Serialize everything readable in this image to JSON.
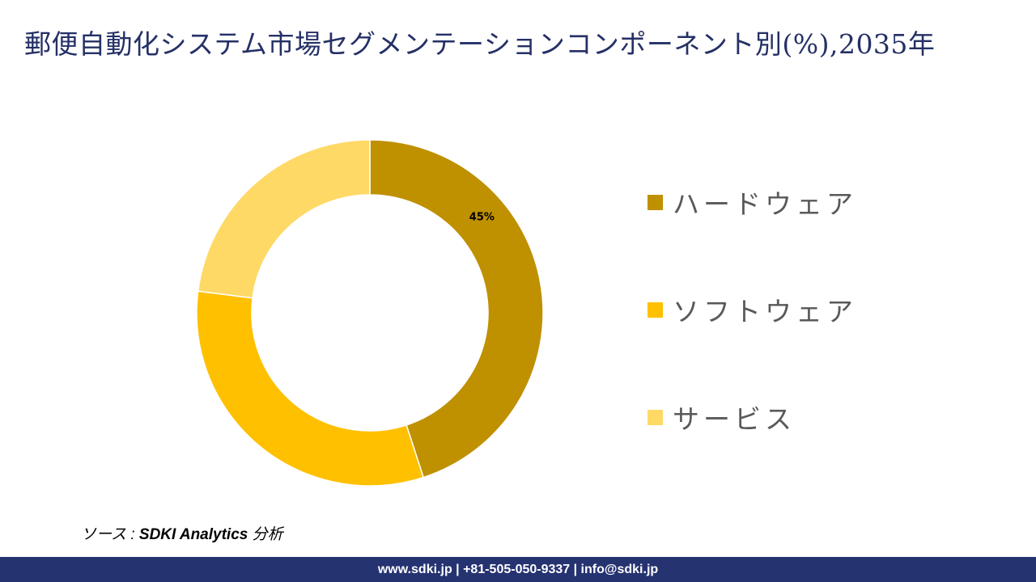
{
  "header": {
    "title": "郵便自動化システム市場セグメンテーションコンポーネント別(%),2035年"
  },
  "chart_data": {
    "type": "pie",
    "subtype": "donut",
    "title": "郵便自動化システム市場セグメンテーションコンポーネント別(%),2035年",
    "categories": [
      "ハードウェア",
      "ソフトウェア",
      "サービス"
    ],
    "values": [
      45,
      32,
      23
    ],
    "colors": [
      "#BF9000",
      "#FFC000",
      "#FFD966"
    ],
    "data_labels": [
      "45%",
      "",
      ""
    ],
    "legend_position": "right",
    "start_angle_deg": 0,
    "direction": "clockwise"
  },
  "legend": {
    "items": [
      {
        "label": "ハードウェア",
        "color": "#BF9000"
      },
      {
        "label": "ソフトウェア",
        "color": "#FFC000"
      },
      {
        "label": "サービス",
        "color": "#FFD966"
      }
    ]
  },
  "source": {
    "prefix": "ソース : ",
    "name": "SDKI Analytics",
    "suffix": " 分析"
  },
  "footer": {
    "text": "www.sdki.jp | +81-505-050-9337 | info@sdki.jp"
  }
}
